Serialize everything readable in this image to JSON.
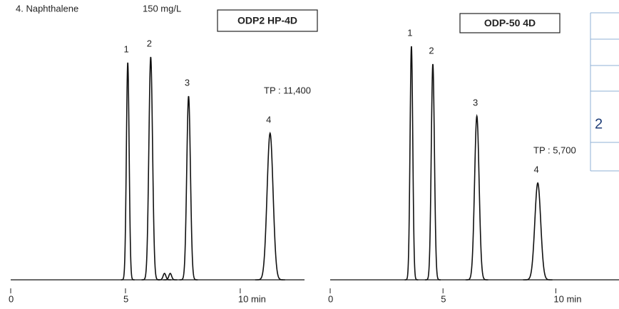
{
  "header": {
    "compound": "4. Naphthalene",
    "concentration": "150 mg/L"
  },
  "chart_data": [
    {
      "type": "chromatogram",
      "title": "ODP2 HP-4D",
      "annotation": "TP : 11,400",
      "color": "#111111",
      "xlim": [
        0,
        12.8
      ],
      "xticks": [
        0,
        5,
        {
          "value": 10,
          "label": "10  min"
        }
      ],
      "ylim": [
        0,
        330
      ],
      "peaks": [
        {
          "label": "1",
          "x": 5.1,
          "height": 305,
          "width": 0.06
        },
        {
          "label": "2",
          "x": 6.1,
          "height": 313,
          "width": 0.08
        },
        {
          "label": null,
          "x": 6.7,
          "height": 9,
          "width": 0.06
        },
        {
          "label": null,
          "x": 6.95,
          "height": 9,
          "width": 0.06
        },
        {
          "label": "3",
          "x": 7.75,
          "height": 258,
          "width": 0.08
        },
        {
          "label": "4",
          "x": 11.3,
          "height": 206,
          "width": 0.13
        }
      ]
    },
    {
      "type": "chromatogram",
      "title": "ODP-50 4D",
      "annotation": "TP : 5,700",
      "color": "#111111",
      "xlim": [
        0,
        12.8
      ],
      "xticks": [
        0,
        5,
        {
          "value": 10,
          "label": "10  min"
        }
      ],
      "ylim": [
        0,
        330
      ],
      "peaks": [
        {
          "label": "1",
          "x": 3.6,
          "height": 328,
          "width": 0.06
        },
        {
          "label": "2",
          "x": 4.55,
          "height": 303,
          "width": 0.07
        },
        {
          "label": "3",
          "x": 6.5,
          "height": 230,
          "width": 0.1
        },
        {
          "label": "4",
          "x": 9.2,
          "height": 136,
          "width": 0.13
        }
      ]
    }
  ],
  "side_table": {
    "cell": "2"
  }
}
